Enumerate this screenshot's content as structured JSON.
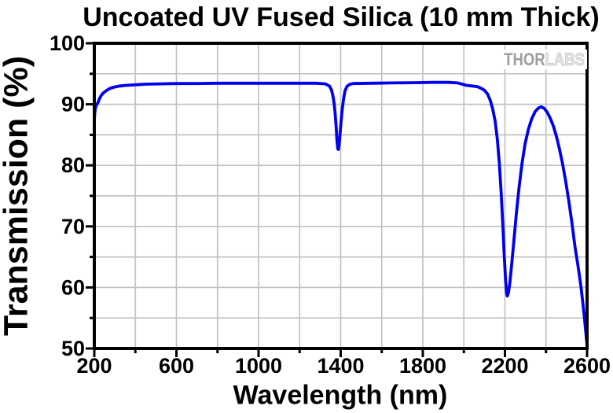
{
  "chart_data": {
    "type": "line",
    "title": "Uncoated UV Fused Silica (10 mm Thick)",
    "xlabel": "Wavelength (nm)",
    "ylabel": "Transmission (%)",
    "xlim": [
      200,
      2600
    ],
    "ylim": [
      50,
      100
    ],
    "x_major_ticks": [
      200,
      600,
      1000,
      1400,
      1800,
      2200,
      2600
    ],
    "x_minor_step": 200,
    "y_major_ticks": [
      50,
      60,
      70,
      80,
      90,
      100
    ],
    "y_minor_step": 5,
    "grid": true,
    "legend": "none",
    "series": [
      {
        "name": "Transmission",
        "color": "#0000ee",
        "points": [
          [
            200,
            87.2
          ],
          [
            202,
            88.5
          ],
          [
            205,
            89.3
          ],
          [
            209,
            89.8
          ],
          [
            213,
            90.0
          ],
          [
            218,
            90.3
          ],
          [
            225,
            90.9
          ],
          [
            233,
            91.4
          ],
          [
            242,
            91.8
          ],
          [
            253,
            92.1
          ],
          [
            265,
            92.4
          ],
          [
            280,
            92.65
          ],
          [
            300,
            92.85
          ],
          [
            325,
            93.0
          ],
          [
            355,
            93.1
          ],
          [
            400,
            93.2
          ],
          [
            450,
            93.3
          ],
          [
            520,
            93.35
          ],
          [
            600,
            93.4
          ],
          [
            700,
            93.4
          ],
          [
            800,
            93.45
          ],
          [
            900,
            93.45
          ],
          [
            1000,
            93.45
          ],
          [
            1100,
            93.45
          ],
          [
            1200,
            93.45
          ],
          [
            1280,
            93.45
          ],
          [
            1325,
            93.35
          ],
          [
            1345,
            93.0
          ],
          [
            1355,
            92.4
          ],
          [
            1362,
            91.4
          ],
          [
            1368,
            90.2
          ],
          [
            1373,
            88.6
          ],
          [
            1378,
            86.2
          ],
          [
            1382,
            84.0
          ],
          [
            1386,
            82.7
          ],
          [
            1389,
            82.6
          ],
          [
            1392,
            83.3
          ],
          [
            1396,
            84.8
          ],
          [
            1401,
            86.9
          ],
          [
            1407,
            89.0
          ],
          [
            1414,
            90.9
          ],
          [
            1421,
            92.2
          ],
          [
            1430,
            92.9
          ],
          [
            1442,
            93.25
          ],
          [
            1460,
            93.4
          ],
          [
            1550,
            93.45
          ],
          [
            1650,
            93.5
          ],
          [
            1750,
            93.55
          ],
          [
            1850,
            93.6
          ],
          [
            1925,
            93.6
          ],
          [
            1970,
            93.5
          ],
          [
            1992,
            93.3
          ],
          [
            2012,
            93.1
          ],
          [
            2040,
            93.0
          ],
          [
            2065,
            92.9
          ],
          [
            2085,
            92.6
          ],
          [
            2100,
            92.3
          ],
          [
            2115,
            91.7
          ],
          [
            2128,
            90.7
          ],
          [
            2140,
            89.3
          ],
          [
            2152,
            87.3
          ],
          [
            2163,
            84.3
          ],
          [
            2173,
            80.3
          ],
          [
            2182,
            75.3
          ],
          [
            2190,
            70.0
          ],
          [
            2197,
            65.0
          ],
          [
            2203,
            61.2
          ],
          [
            2208,
            59.1
          ],
          [
            2212,
            58.6
          ],
          [
            2217,
            59.1
          ],
          [
            2224,
            60.8
          ],
          [
            2233,
            63.8
          ],
          [
            2244,
            67.8
          ],
          [
            2256,
            72.2
          ],
          [
            2269,
            76.4
          ],
          [
            2283,
            80.3
          ],
          [
            2298,
            83.5
          ],
          [
            2314,
            85.9
          ],
          [
            2330,
            87.6
          ],
          [
            2347,
            88.8
          ],
          [
            2363,
            89.4
          ],
          [
            2377,
            89.6
          ],
          [
            2392,
            89.3
          ],
          [
            2406,
            88.7
          ],
          [
            2421,
            87.7
          ],
          [
            2436,
            86.4
          ],
          [
            2451,
            84.7
          ],
          [
            2466,
            82.6
          ],
          [
            2481,
            80.2
          ],
          [
            2496,
            77.4
          ],
          [
            2511,
            74.2
          ],
          [
            2526,
            70.6
          ],
          [
            2541,
            66.7
          ],
          [
            2556,
            63.5
          ],
          [
            2571,
            60.0
          ],
          [
            2586,
            55.5
          ],
          [
            2600,
            50.5
          ]
        ]
      }
    ]
  },
  "watermark": {
    "thor": "THOR",
    "labs": "LABS"
  },
  "colors": {
    "curve": "#0000ee",
    "grid": "#c2c2c2",
    "axis": "#000000",
    "background": "#ffffff",
    "watermark_dark": "#9d9da1",
    "watermark_light": "#c9c9cd"
  }
}
